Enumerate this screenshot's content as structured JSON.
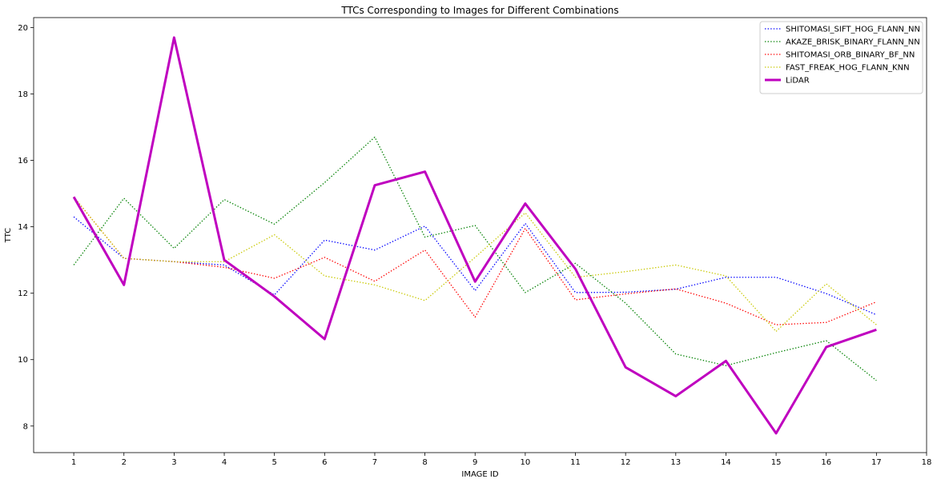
{
  "chart_data": {
    "type": "line",
    "title": "TTCs Corresponding to Images for Different Combinations",
    "xlabel": "IMAGE ID",
    "ylabel": "TTC",
    "xlim": [
      0.2,
      18
    ],
    "ylim": [
      7.2,
      20.3
    ],
    "xticks": [
      1,
      2,
      3,
      4,
      5,
      6,
      7,
      8,
      9,
      10,
      11,
      12,
      13,
      14,
      15,
      16,
      17,
      18
    ],
    "yticks": [
      8,
      10,
      12,
      14,
      16,
      18,
      20
    ],
    "grid": false,
    "legend_position": "top-right",
    "x": [
      1,
      2,
      3,
      4,
      5,
      6,
      7,
      8,
      9,
      10,
      11,
      12,
      13,
      14,
      15,
      16,
      17
    ],
    "series": [
      {
        "name": "SHITOMASI_SIFT_HOG_FLANN_NN",
        "color": "#0000ff",
        "style": "dotted",
        "values": [
          14.3,
          13.05,
          12.95,
          12.85,
          11.95,
          13.6,
          13.3,
          14.02,
          12.08,
          14.1,
          12.02,
          12.03,
          12.12,
          12.48,
          12.48,
          11.99,
          11.35
        ]
      },
      {
        "name": "AKAZE_BRISK_BINARY_FLANN_NN",
        "color": "#008000",
        "style": "dotted",
        "values": [
          12.85,
          14.86,
          13.35,
          14.82,
          14.08,
          15.33,
          16.7,
          13.69,
          14.04,
          12.02,
          12.9,
          11.7,
          10.17,
          9.82,
          10.21,
          10.57,
          9.37
        ]
      },
      {
        "name": "SHITOMASI_ORB_BINARY_BF_NN",
        "color": "#ff0000",
        "style": "dotted",
        "values": [
          14.9,
          13.05,
          12.95,
          12.78,
          12.45,
          13.08,
          12.36,
          13.3,
          11.28,
          13.95,
          11.8,
          11.98,
          12.13,
          11.7,
          11.05,
          11.12,
          11.74
        ]
      },
      {
        "name": "FAST_FREAK_HOG_FLANN_KNN",
        "color": "#c8c800",
        "style": "dotted",
        "values": [
          14.9,
          13.05,
          12.95,
          12.95,
          13.76,
          12.52,
          12.25,
          11.78,
          13.08,
          14.42,
          12.48,
          12.65,
          12.85,
          12.52,
          10.85,
          12.28,
          11.05
        ]
      },
      {
        "name": "LiDAR",
        "color": "#bf00bf",
        "style": "solid",
        "values": [
          14.9,
          12.25,
          19.7,
          13.0,
          11.9,
          10.62,
          15.25,
          15.66,
          12.35,
          14.7,
          12.73,
          9.77,
          8.9,
          9.96,
          7.78,
          10.38,
          10.9
        ]
      }
    ]
  }
}
